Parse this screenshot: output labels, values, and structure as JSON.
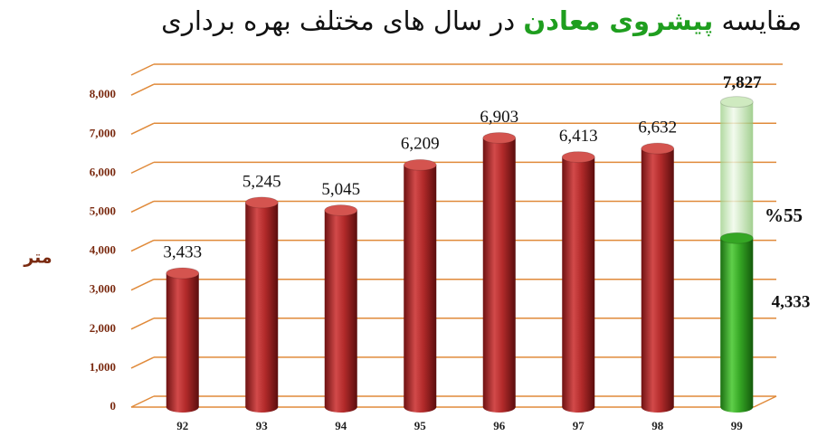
{
  "chart_data": {
    "type": "bar",
    "title": {
      "start": "مقایسه",
      "highlight": "پیشروی معادن",
      "end": "در سال های مختلف بهره برداری"
    },
    "y_label": "متر",
    "categories": [
      "92",
      "93",
      "94",
      "95",
      "96",
      "97",
      "98",
      "99"
    ],
    "values": [
      3433,
      5245,
      5045,
      6209,
      6903,
      6413,
      6632,
      7827
    ],
    "value_labels": [
      "3,433",
      "5,245",
      "5,045",
      "6,209",
      "6,903",
      "6,413",
      "6,632",
      "7,827"
    ],
    "color": "#b22a2a",
    "target_color": "#cfeac0",
    "achieved": {
      "value": 4333,
      "label": "4,333",
      "color": "#35a624"
    },
    "share_label": "%55",
    "ylim": [
      0,
      8700
    ],
    "yticks": [
      0,
      {
        "value": 1000,
        "label": "1,000"
      },
      {
        "value": 2000,
        "label": "2,000"
      },
      {
        "value": 3000,
        "label": "3,000"
      },
      {
        "value": 4000,
        "label": "4,000"
      },
      {
        "value": 5000,
        "label": "5,000"
      },
      {
        "value": 6000,
        "label": "6,000"
      },
      {
        "value": 7000,
        "label": "7,000"
      },
      {
        "value": 8000,
        "label": "8,000"
      }
    ],
    "grid": true
  }
}
